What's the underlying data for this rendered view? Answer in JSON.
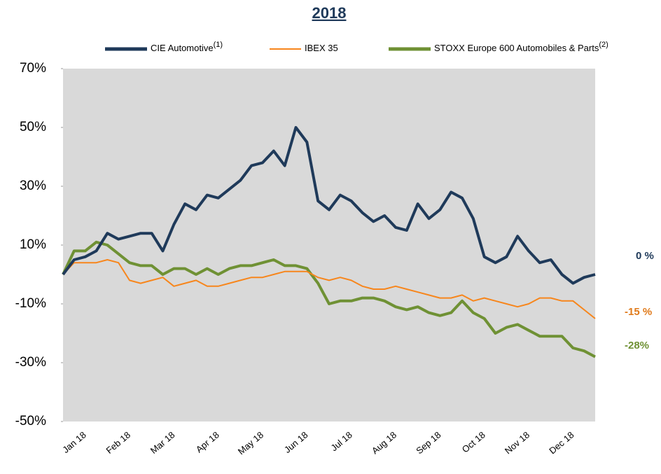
{
  "chart_data": {
    "type": "line",
    "title": "2018",
    "categories": [
      null,
      null,
      "Jan 18",
      null,
      null,
      null,
      "Feb 18",
      null,
      null,
      null,
      "Mar 18",
      null,
      null,
      null,
      "Apr 18",
      null,
      null,
      null,
      "May 18",
      null,
      null,
      null,
      "Jun 18",
      null,
      null,
      null,
      "Jul 18",
      null,
      null,
      null,
      "Aug 18",
      null,
      null,
      null,
      "Sep 18",
      null,
      null,
      null,
      "Oct 18",
      null,
      null,
      null,
      "Nov 18",
      null,
      null,
      null,
      "Dec 18",
      null,
      null
    ],
    "series": [
      {
        "name": "CIE Automotive",
        "footnote": "(1)",
        "color": "#1f3a5a",
        "values": [
          0,
          5,
          6,
          8,
          14,
          12,
          13,
          14,
          14,
          8,
          17,
          24,
          22,
          27,
          26,
          29,
          32,
          37,
          38,
          42,
          37,
          50,
          45,
          25,
          22,
          27,
          25,
          21,
          18,
          20,
          16,
          15,
          24,
          19,
          22,
          28,
          26,
          19,
          6,
          4,
          6,
          13,
          8,
          4,
          5,
          0,
          -3,
          -1,
          0
        ]
      },
      {
        "name": "IBEX 35",
        "color": "#f7861c",
        "values": [
          0,
          4,
          4,
          4,
          5,
          4,
          -2,
          -3,
          -2,
          -1,
          -4,
          -3,
          -2,
          -4,
          -4,
          -3,
          -2,
          -1,
          -1,
          0,
          1,
          1,
          1,
          -1,
          -2,
          -1,
          -2,
          -4,
          -5,
          -5,
          -4,
          -5,
          -6,
          -7,
          -8,
          -8,
          -7,
          -9,
          -8,
          -9,
          -10,
          -11,
          -10,
          -8,
          -8,
          -9,
          -9,
          -12,
          -15
        ]
      },
      {
        "name": "STOXX Europe 600 Automobiles & Parts",
        "footnote": "(2)",
        "color": "#6f9134",
        "values": [
          0,
          8,
          8,
          11,
          10,
          7,
          4,
          3,
          3,
          0,
          2,
          2,
          0,
          2,
          0,
          2,
          3,
          3,
          4,
          5,
          3,
          3,
          2,
          -3,
          -10,
          -9,
          -9,
          -8,
          -8,
          -9,
          -11,
          -12,
          -11,
          -13,
          -14,
          -13,
          -9,
          -13,
          -15,
          -20,
          -18,
          -17,
          -19,
          -21,
          -21,
          -21,
          -25,
          -26,
          -28
        ]
      }
    ],
    "end_labels": [
      {
        "text": "0 %",
        "color": "#1f3a5a"
      },
      {
        "text": "-15 %",
        "color": "#e07a1a"
      },
      {
        "text": "-28%",
        "color": "#6f9134"
      }
    ],
    "ylim": [
      -50,
      70
    ],
    "yticks": [
      {
        "value": -50,
        "label": "-50%"
      },
      {
        "value": -30,
        "label": "-30%"
      },
      {
        "value": -10,
        "label": "-10%"
      },
      {
        "value": 10,
        "label": "10%"
      },
      {
        "value": 30,
        "label": "30%"
      },
      {
        "value": 50,
        "label": "50%"
      },
      {
        "value": 70,
        "label": "70%"
      }
    ],
    "plot_background": "#d9d9d9"
  }
}
